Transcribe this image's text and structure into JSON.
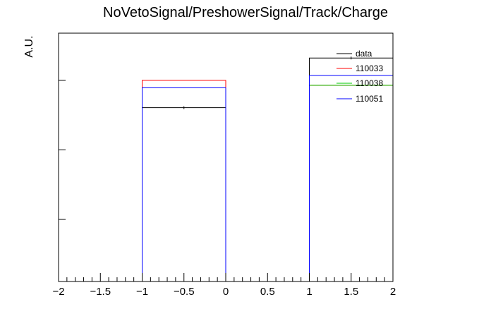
{
  "chart_data": {
    "type": "histogram",
    "title": "NoVetoSignal/PreshowerSignal/Track/Charge",
    "xlabel": "",
    "ylabel": "A.U.",
    "xlim": [
      -2,
      2
    ],
    "ylim": [
      0,
      1.0
    ],
    "x_ticks": [
      -2,
      -1.5,
      -1,
      -0.5,
      0,
      0.5,
      1,
      1.5,
      2
    ],
    "x_tick_labels": [
      "−2",
      "−1.5",
      "−1",
      "−0.5",
      "0",
      "0.5",
      "1",
      "1.5",
      "2"
    ],
    "bin_edges": [
      -2,
      -1,
      0,
      1,
      2
    ],
    "series": [
      {
        "name": "data",
        "color": "#000000",
        "values": [
          0,
          0.7,
          0,
          0.9
        ]
      },
      {
        "name": "110033",
        "color": "#ff0000",
        "values": [
          0,
          0.81,
          0,
          0.79
        ]
      },
      {
        "name": "110038",
        "color": "#00cc00",
        "values": [
          0,
          0.78,
          0,
          0.79
        ]
      },
      {
        "name": "110051",
        "color": "#0000ff",
        "values": [
          0,
          0.78,
          0,
          0.83
        ]
      }
    ],
    "legend_position": "top-right",
    "grid": false
  }
}
